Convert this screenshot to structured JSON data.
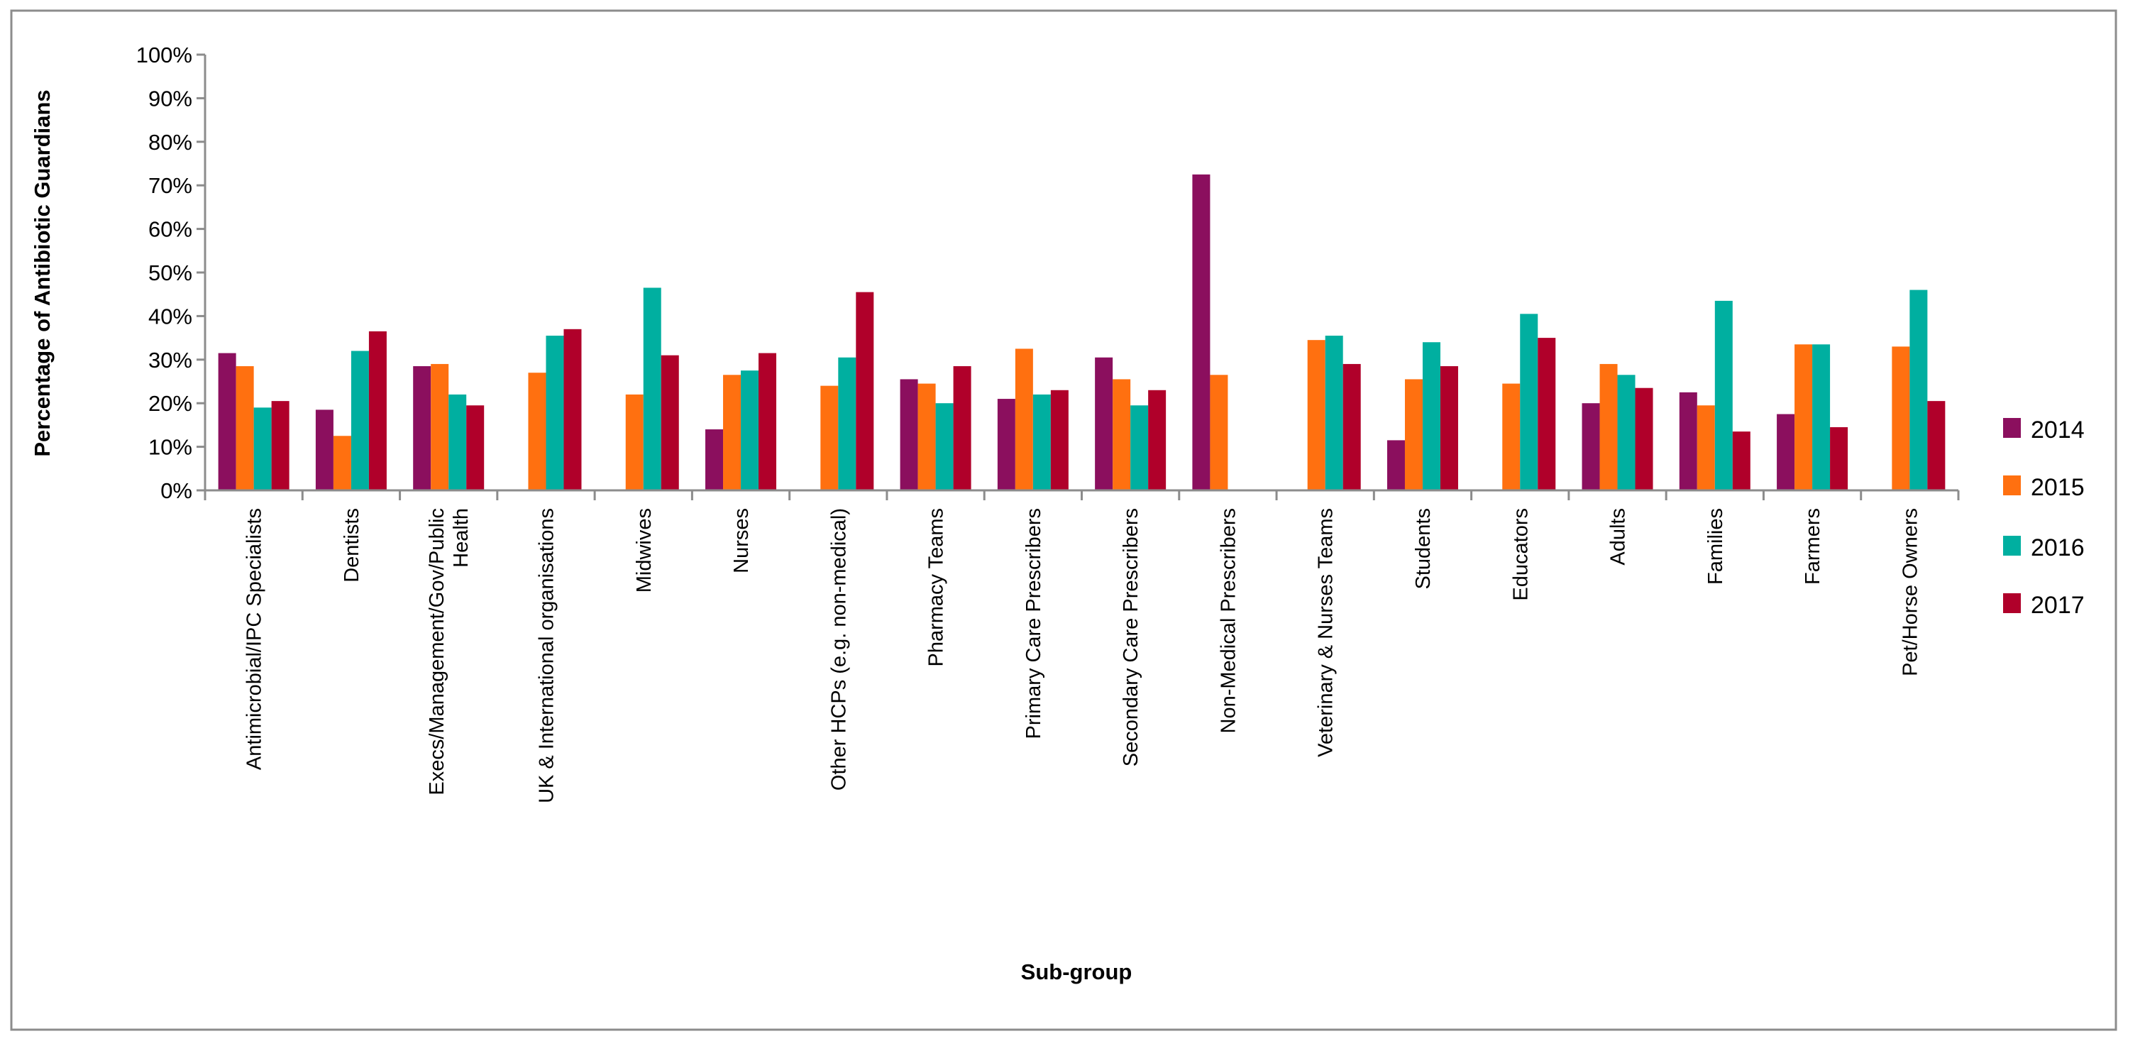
{
  "chart_data": {
    "type": "bar",
    "title": "",
    "xlabel": "Sub-group",
    "ylabel": "Percentage of Antibiotic Guardians",
    "ylim": [
      0,
      100
    ],
    "yticks": [
      "0%",
      "10%",
      "20%",
      "30%",
      "40%",
      "50%",
      "60%",
      "70%",
      "80%",
      "90%",
      "100%"
    ],
    "grid": false,
    "legend_position": "right",
    "categories": [
      [
        "Antimicrobial/IPC Specialists"
      ],
      [
        "Dentists"
      ],
      [
        "Execs/Management/Gov/Public",
        "Health"
      ],
      [
        "UK & International organisations"
      ],
      [
        "Midwives"
      ],
      [
        "Nurses"
      ],
      [
        "Other HCPs (e.g. non-medical)"
      ],
      [
        "Pharmacy Teams"
      ],
      [
        "Primary Care Prescribers"
      ],
      [
        "Secondary Care Prescribers"
      ],
      [
        "Non-Medical Prescribers"
      ],
      [
        "Veterinary & Nurses Teams"
      ],
      [
        "Students"
      ],
      [
        "Educators"
      ],
      [
        "Adults"
      ],
      [
        "Families"
      ],
      [
        "Farmers"
      ],
      [
        "Pet/Horse Owners"
      ]
    ],
    "series": [
      {
        "name": "2014",
        "color": "#8B0F5E",
        "values": [
          31.5,
          18.5,
          28.5,
          0,
          0,
          14,
          0,
          25.5,
          21,
          30.5,
          72.5,
          0,
          11.5,
          0,
          20,
          22.5,
          17.5,
          0
        ]
      },
      {
        "name": "2015",
        "color": "#FF7010",
        "values": [
          28.5,
          12.5,
          29,
          27,
          22,
          26.5,
          24,
          24.5,
          32.5,
          25.5,
          26.5,
          34.5,
          25.5,
          24.5,
          29,
          19.5,
          33.5,
          33
        ]
      },
      {
        "name": "2016",
        "color": "#00AFA0",
        "values": [
          19,
          32,
          22,
          35.5,
          46.5,
          27.5,
          30.5,
          20,
          22,
          19.5,
          0,
          35.5,
          34,
          40.5,
          26.5,
          43.5,
          33.5,
          46
        ]
      },
      {
        "name": "2017",
        "color": "#B0002A",
        "values": [
          20.5,
          36.5,
          19.5,
          37,
          31,
          31.5,
          45.5,
          28.5,
          23,
          23,
          0,
          29,
          28.5,
          35,
          23.5,
          13.5,
          14.5,
          20.5
        ]
      }
    ]
  }
}
